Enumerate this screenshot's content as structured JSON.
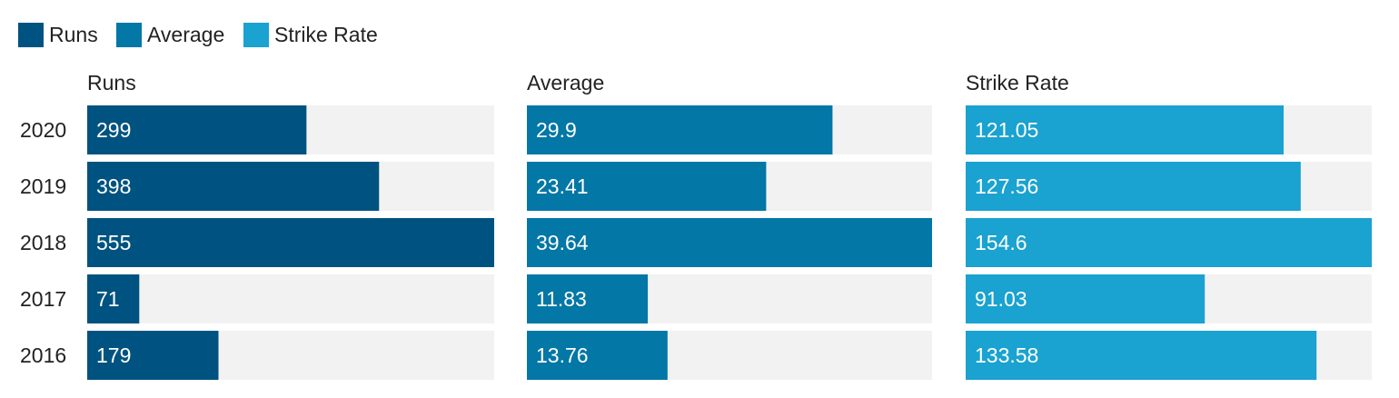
{
  "colors": {
    "Runs": "#005380",
    "Average": "#0377a6",
    "Strike Rate": "#1aa2d0",
    "track": "#f2f2f2",
    "label_text": "#ffffff",
    "axis_text": "#222222"
  },
  "chart_data": {
    "type": "bar",
    "orientation": "horizontal",
    "layout": "small-multiples",
    "categories": [
      "2020",
      "2019",
      "2018",
      "2017",
      "2016"
    ],
    "legend": {
      "placement": "top-left",
      "entries": [
        "Runs",
        "Average",
        "Strike Rate"
      ]
    },
    "grid": false,
    "series": [
      {
        "name": "Runs",
        "values": [
          299,
          398,
          555,
          71,
          179
        ],
        "labels": [
          "299",
          "398",
          "555",
          "71",
          "179"
        ],
        "xlim": [
          0,
          555
        ]
      },
      {
        "name": "Average",
        "values": [
          29.9,
          23.41,
          39.64,
          11.83,
          13.76
        ],
        "labels": [
          "29.9",
          "23.41",
          "39.64",
          "11.83",
          "13.76"
        ],
        "xlim": [
          0,
          39.64
        ]
      },
      {
        "name": "Strike Rate",
        "values": [
          121.05,
          127.56,
          154.6,
          91.03,
          133.58
        ],
        "labels": [
          "121.05",
          "127.56",
          "154.6",
          "91.03",
          "133.58"
        ],
        "xlim": [
          0,
          154.6
        ]
      }
    ]
  }
}
